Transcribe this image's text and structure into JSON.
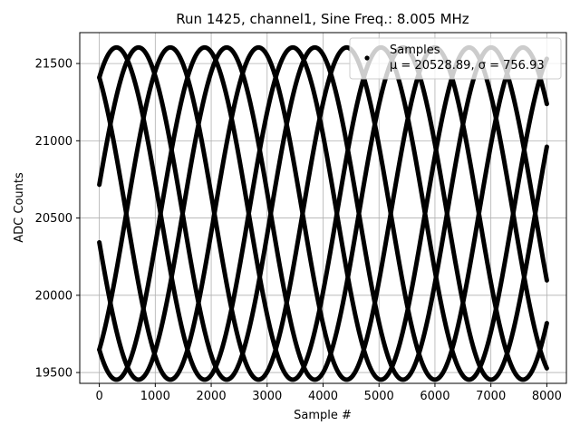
{
  "chart_data": {
    "type": "scatter",
    "title": "Run 1425, channel1, Sine Freq.: 8.005 MHz",
    "xlabel": "Sample #",
    "ylabel": "ADC Counts",
    "xlim": [
      -350,
      8350
    ],
    "ylim": [
      19430,
      21700
    ],
    "xticks": [
      0,
      1000,
      2000,
      3000,
      4000,
      5000,
      6000,
      7000,
      8000
    ],
    "yticks": [
      19500,
      20000,
      20500,
      21000,
      21500
    ],
    "grid": true,
    "legend": {
      "placement": "top-right",
      "entry": "Samples",
      "stats": "μ = 20528.89, σ = 756.93"
    },
    "series": [
      {
        "name": "Samples",
        "color": "#000000",
        "model": {
          "offset": 20528.89,
          "amplitude": 1075,
          "period_samples": 3152,
          "phases_deg": [
            55,
            125,
            235,
            305,
            10,
            190
          ]
        }
      }
    ]
  }
}
